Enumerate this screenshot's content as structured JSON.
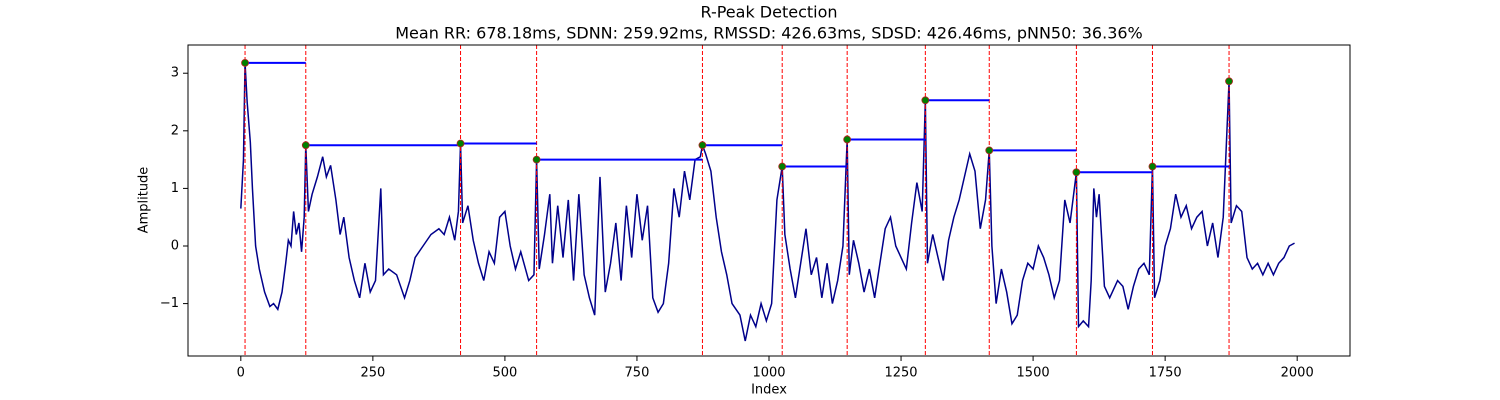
{
  "chart_data": {
    "type": "line",
    "title": "R-Peak Detection",
    "subtitle": "Mean RR: 678.18ms, SDNN: 259.92ms, RMSSD: 426.63ms, SDSD: 426.46ms, pNN50: 36.36%",
    "xlabel": "Index",
    "ylabel": "Amplitude",
    "xlim": [
      -100,
      2100
    ],
    "ylim": [
      -1.91,
      3.49
    ],
    "xticks": [
      0,
      250,
      500,
      750,
      1000,
      1250,
      1500,
      1750,
      2000
    ],
    "yticks": [
      {
        "value": -1,
        "label": "−1"
      },
      0,
      1,
      2,
      3
    ],
    "color": "#00008b",
    "x": [
      0,
      5,
      8,
      12,
      18,
      22,
      28,
      35,
      45,
      55,
      62,
      70,
      78,
      85,
      90,
      95,
      100,
      105,
      110,
      115,
      120,
      123,
      128,
      135,
      145,
      155,
      162,
      170,
      180,
      188,
      195,
      205,
      215,
      225,
      235,
      245,
      255,
      265,
      270,
      280,
      295,
      310,
      320,
      330,
      345,
      360,
      375,
      385,
      395,
      405,
      412,
      416,
      420,
      430,
      440,
      450,
      460,
      470,
      480,
      490,
      500,
      510,
      520,
      530,
      545,
      555,
      560,
      565,
      575,
      585,
      590,
      600,
      610,
      620,
      630,
      640,
      650,
      660,
      670,
      680,
      690,
      700,
      710,
      720,
      730,
      740,
      750,
      760,
      770,
      780,
      790,
      800,
      810,
      820,
      830,
      840,
      850,
      860,
      870,
      874,
      880,
      890,
      900,
      910,
      920,
      930,
      945,
      955,
      965,
      975,
      985,
      995,
      1005,
      1015,
      1025,
      1030,
      1040,
      1050,
      1060,
      1070,
      1080,
      1090,
      1100,
      1110,
      1120,
      1130,
      1140,
      1148,
      1152,
      1160,
      1170,
      1180,
      1190,
      1200,
      1210,
      1220,
      1230,
      1240,
      1250,
      1260,
      1270,
      1280,
      1290,
      1296,
      1300,
      1310,
      1320,
      1330,
      1340,
      1350,
      1360,
      1370,
      1380,
      1390,
      1400,
      1410,
      1417,
      1422,
      1430,
      1440,
      1450,
      1460,
      1470,
      1480,
      1490,
      1500,
      1510,
      1520,
      1530,
      1540,
      1550,
      1560,
      1570,
      1582,
      1586,
      1595,
      1605,
      1610,
      1615,
      1620,
      1625,
      1635,
      1645,
      1660,
      1670,
      1680,
      1690,
      1700,
      1710,
      1720,
      1726,
      1730,
      1740,
      1750,
      1760,
      1770,
      1780,
      1790,
      1800,
      1810,
      1820,
      1830,
      1840,
      1850,
      1860,
      1871,
      1875,
      1885,
      1895,
      1905,
      1915,
      1925,
      1935,
      1945,
      1955,
      1965,
      1975,
      1985,
      1995
    ],
    "values": [
      0.65,
      1.5,
      3.18,
      2.5,
      1.8,
      1.0,
      0.0,
      -0.4,
      -0.8,
      -1.05,
      -1.0,
      -1.1,
      -0.8,
      -0.3,
      0.1,
      0.0,
      0.6,
      0.2,
      0.4,
      -0.1,
      0.5,
      1.75,
      0.6,
      0.9,
      1.2,
      1.55,
      1.2,
      1.4,
      0.8,
      0.2,
      0.5,
      -0.2,
      -0.6,
      -0.9,
      -0.3,
      -0.8,
      -0.6,
      1.0,
      -0.5,
      -0.4,
      -0.5,
      -0.9,
      -0.6,
      -0.2,
      0.0,
      0.2,
      0.3,
      0.2,
      0.5,
      0.1,
      0.6,
      1.78,
      0.4,
      0.7,
      0.1,
      -0.3,
      -0.6,
      -0.1,
      -0.3,
      0.5,
      0.6,
      0.0,
      -0.4,
      -0.1,
      -0.6,
      -0.5,
      1.5,
      -0.4,
      0.2,
      0.9,
      -0.3,
      0.7,
      -0.2,
      0.8,
      -0.6,
      0.9,
      -0.5,
      -0.9,
      -1.2,
      1.2,
      -0.8,
      -0.3,
      0.4,
      -0.6,
      0.7,
      -0.2,
      0.9,
      0.1,
      0.7,
      -0.9,
      -1.15,
      -1.0,
      -0.3,
      1.0,
      0.5,
      1.3,
      0.8,
      1.5,
      1.55,
      1.75,
      1.6,
      1.3,
      0.5,
      -0.1,
      -0.5,
      -1.0,
      -1.2,
      -1.65,
      -1.2,
      -1.4,
      -1.0,
      -1.3,
      -1.0,
      0.8,
      1.38,
      0.2,
      -0.4,
      -0.9,
      -0.3,
      0.3,
      -0.5,
      -0.2,
      -0.9,
      -0.3,
      -1.0,
      -0.6,
      0.0,
      1.85,
      -0.5,
      0.1,
      -0.3,
      -0.8,
      -0.4,
      -0.9,
      -0.3,
      0.3,
      0.5,
      0.0,
      -0.2,
      -0.4,
      0.4,
      1.1,
      0.6,
      2.53,
      -0.3,
      0.2,
      -0.2,
      -0.6,
      0.1,
      0.5,
      0.8,
      1.2,
      1.6,
      1.3,
      0.3,
      0.8,
      1.66,
      0.0,
      -1.0,
      -0.4,
      -0.8,
      -1.35,
      -1.2,
      -0.6,
      -0.3,
      -0.4,
      0.0,
      -0.2,
      -0.5,
      -0.9,
      -0.6,
      0.8,
      0.4,
      1.28,
      -1.4,
      -1.3,
      -1.4,
      -0.6,
      1.0,
      0.5,
      0.9,
      -0.7,
      -0.9,
      -0.6,
      -0.7,
      -1.1,
      -0.7,
      -0.4,
      -0.3,
      -0.5,
      1.38,
      -0.9,
      -0.6,
      0.0,
      0.3,
      0.9,
      0.5,
      0.7,
      0.3,
      0.5,
      0.6,
      0.0,
      0.4,
      -0.2,
      0.5,
      2.86,
      0.4,
      0.7,
      0.6,
      -0.2,
      -0.4,
      -0.3,
      -0.5,
      -0.3,
      -0.5,
      -0.3,
      -0.2,
      0.0,
      0.05
    ],
    "peaks": {
      "x": [
        8,
        123,
        416,
        560,
        874,
        1025,
        1148,
        1296,
        1417,
        1582,
        1726,
        1871
      ],
      "values": [
        3.18,
        1.75,
        1.78,
        1.5,
        1.75,
        1.38,
        1.85,
        2.53,
        1.66,
        1.28,
        1.38,
        2.86
      ],
      "color": "green",
      "edge_color": "#b22222"
    },
    "peak_line_color": "red",
    "rr_line_color": "blue"
  }
}
